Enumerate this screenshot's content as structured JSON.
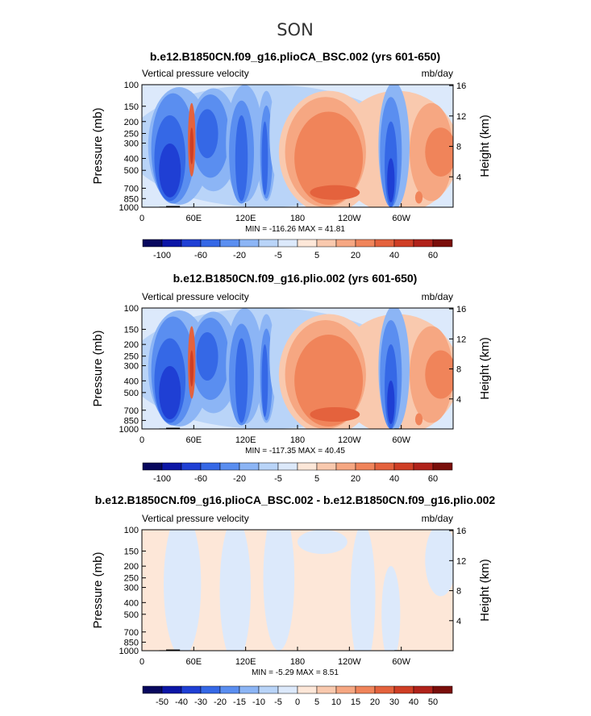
{
  "figure": {
    "title": "SON"
  },
  "palette": {
    "colors": [
      "#08085e",
      "#0c16a6",
      "#1f3fd4",
      "#3568e6",
      "#5a8ef0",
      "#8cb5f5",
      "#b9d4f8",
      "#dce9fb",
      "#fde7d8",
      "#f9c9ae",
      "#f6a782",
      "#f0845a",
      "#e4623d",
      "#cf3e25",
      "#b0221a",
      "#7a0e0a"
    ],
    "terrain": "#000000",
    "frame": "#000000"
  },
  "chart_data": [
    {
      "type": "heatmap",
      "title": "b.e12.B1850CN.f09_g16.plioCA_BSC.002 (yrs 601-650)",
      "left_label": "Vertical pressure velocity",
      "units": "mb/day",
      "ylabel": "Pressure (mb)",
      "ylabel_right": "Height (km)",
      "x_ticks": [
        "0",
        "60E",
        "120E",
        "180",
        "120W",
        "60W"
      ],
      "x_tick_values": [
        0,
        60,
        120,
        180,
        240,
        300
      ],
      "xlim": [
        0,
        360
      ],
      "y_ticks": [
        100,
        150,
        200,
        250,
        300,
        400,
        500,
        700,
        850,
        1000
      ],
      "ylim": [
        1000,
        100
      ],
      "y_log": true,
      "right_ticks": [
        4,
        8,
        12,
        16
      ],
      "stats": "MIN = -116.26   MAX =  41.81",
      "min": -116.26,
      "max": 41.81,
      "colorbar_levels": [
        "-100",
        "-60",
        "-20",
        "-5",
        "5",
        "20",
        "40",
        "60"
      ],
      "colorbar_label_slots": [
        1,
        3,
        5,
        7,
        9,
        11,
        13,
        15
      ],
      "variant": "full"
    },
    {
      "type": "heatmap",
      "title": "b.e12.B1850CN.f09_g16.plio.002 (yrs 601-650)",
      "left_label": "Vertical pressure velocity",
      "units": "mb/day",
      "ylabel": "Pressure (mb)",
      "ylabel_right": "Height (km)",
      "x_ticks": [
        "0",
        "60E",
        "120E",
        "180",
        "120W",
        "60W"
      ],
      "x_tick_values": [
        0,
        60,
        120,
        180,
        240,
        300
      ],
      "xlim": [
        0,
        360
      ],
      "y_ticks": [
        100,
        150,
        200,
        250,
        300,
        400,
        500,
        700,
        850,
        1000
      ],
      "ylim": [
        1000,
        100
      ],
      "y_log": true,
      "right_ticks": [
        4,
        8,
        12,
        16
      ],
      "stats": "MIN = -117.35   MAX =  40.45",
      "min": -117.35,
      "max": 40.45,
      "colorbar_levels": [
        "-100",
        "-60",
        "-20",
        "-5",
        "5",
        "20",
        "40",
        "60"
      ],
      "colorbar_label_slots": [
        1,
        3,
        5,
        7,
        9,
        11,
        13,
        15
      ],
      "variant": "full"
    },
    {
      "type": "heatmap",
      "title": "b.e12.B1850CN.f09_g16.plioCA_BSC.002 - b.e12.B1850CN.f09_g16.plio.002",
      "left_label": "Vertical pressure velocity",
      "units": "mb/day",
      "ylabel": "Pressure (mb)",
      "ylabel_right": "Height (km)",
      "x_ticks": [
        "0",
        "60E",
        "120E",
        "180",
        "120W",
        "60W"
      ],
      "x_tick_values": [
        0,
        60,
        120,
        180,
        240,
        300
      ],
      "xlim": [
        0,
        360
      ],
      "y_ticks": [
        100,
        150,
        200,
        250,
        300,
        400,
        500,
        700,
        850,
        1000
      ],
      "ylim": [
        1000,
        100
      ],
      "y_log": true,
      "right_ticks": [
        4,
        8,
        12,
        16
      ],
      "stats": "MIN =  -5.29   MAX =   8.51",
      "min": -5.29,
      "max": 8.51,
      "colorbar_levels": [
        "-50",
        "-40",
        "-30",
        "-20",
        "-15",
        "-10",
        "-5",
        "0",
        "5",
        "10",
        "15",
        "20",
        "30",
        "40",
        "50"
      ],
      "colorbar_label_slots": [
        1,
        2,
        3,
        4,
        5,
        6,
        7,
        8,
        9,
        10,
        11,
        12,
        13,
        14,
        15
      ],
      "variant": "diff"
    }
  ]
}
